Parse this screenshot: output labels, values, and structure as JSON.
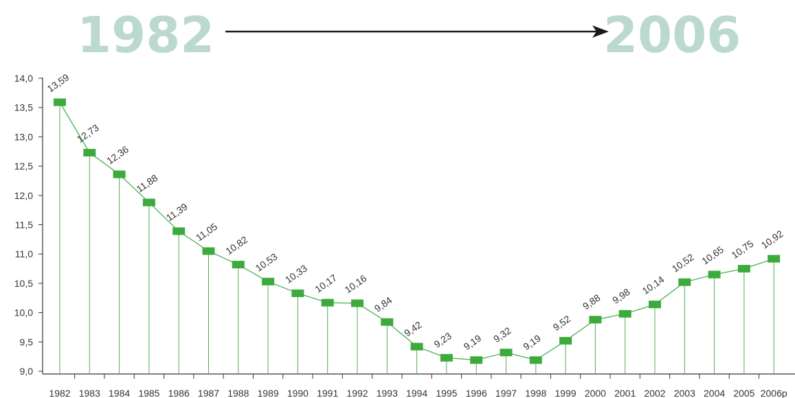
{
  "header": {
    "start_year": "1982",
    "end_year": "2006",
    "year_color": "#bcd9cf",
    "arrow_color": "#1a1a1a"
  },
  "chart_data": {
    "type": "line",
    "title": "",
    "xlabel": "",
    "ylabel": "",
    "ylim": [
      9.0,
      14.0
    ],
    "y_ticks": [
      "9,0",
      "9,5",
      "10,0",
      "10,5",
      "11,0",
      "11,5",
      "12,0",
      "12,5",
      "13,0",
      "13,5",
      "14,0"
    ],
    "categories": [
      "1982",
      "1983",
      "1984",
      "1985",
      "1986",
      "1987",
      "1988",
      "1989",
      "1990",
      "1991",
      "1992",
      "1993",
      "1994",
      "1995",
      "1996",
      "1997",
      "1998",
      "1999",
      "2000",
      "2001",
      "2002",
      "2003",
      "2004",
      "2005",
      "2006p"
    ],
    "values": [
      13.59,
      12.73,
      12.36,
      11.88,
      11.39,
      11.05,
      10.82,
      10.53,
      10.33,
      10.17,
      10.16,
      9.84,
      9.42,
      9.23,
      9.19,
      9.32,
      9.19,
      9.52,
      9.88,
      9.98,
      10.14,
      10.52,
      10.65,
      10.75,
      10.92
    ],
    "value_labels": [
      "13,59",
      "12,73",
      "12,36",
      "11,88",
      "11,39",
      "11,05",
      "10,82",
      "10,53",
      "10,33",
      "10,17",
      "10,16",
      "9,84",
      "9,42",
      "9,23",
      "9,19",
      "9,32",
      "9,19",
      "9,52",
      "9,88",
      "9,98",
      "10,14",
      "10,52",
      "10,65",
      "10,75",
      "10,92"
    ],
    "grid": false,
    "colors": {
      "line": "#4caf50",
      "marker": "#3daa3d",
      "axis": "#333333"
    }
  }
}
